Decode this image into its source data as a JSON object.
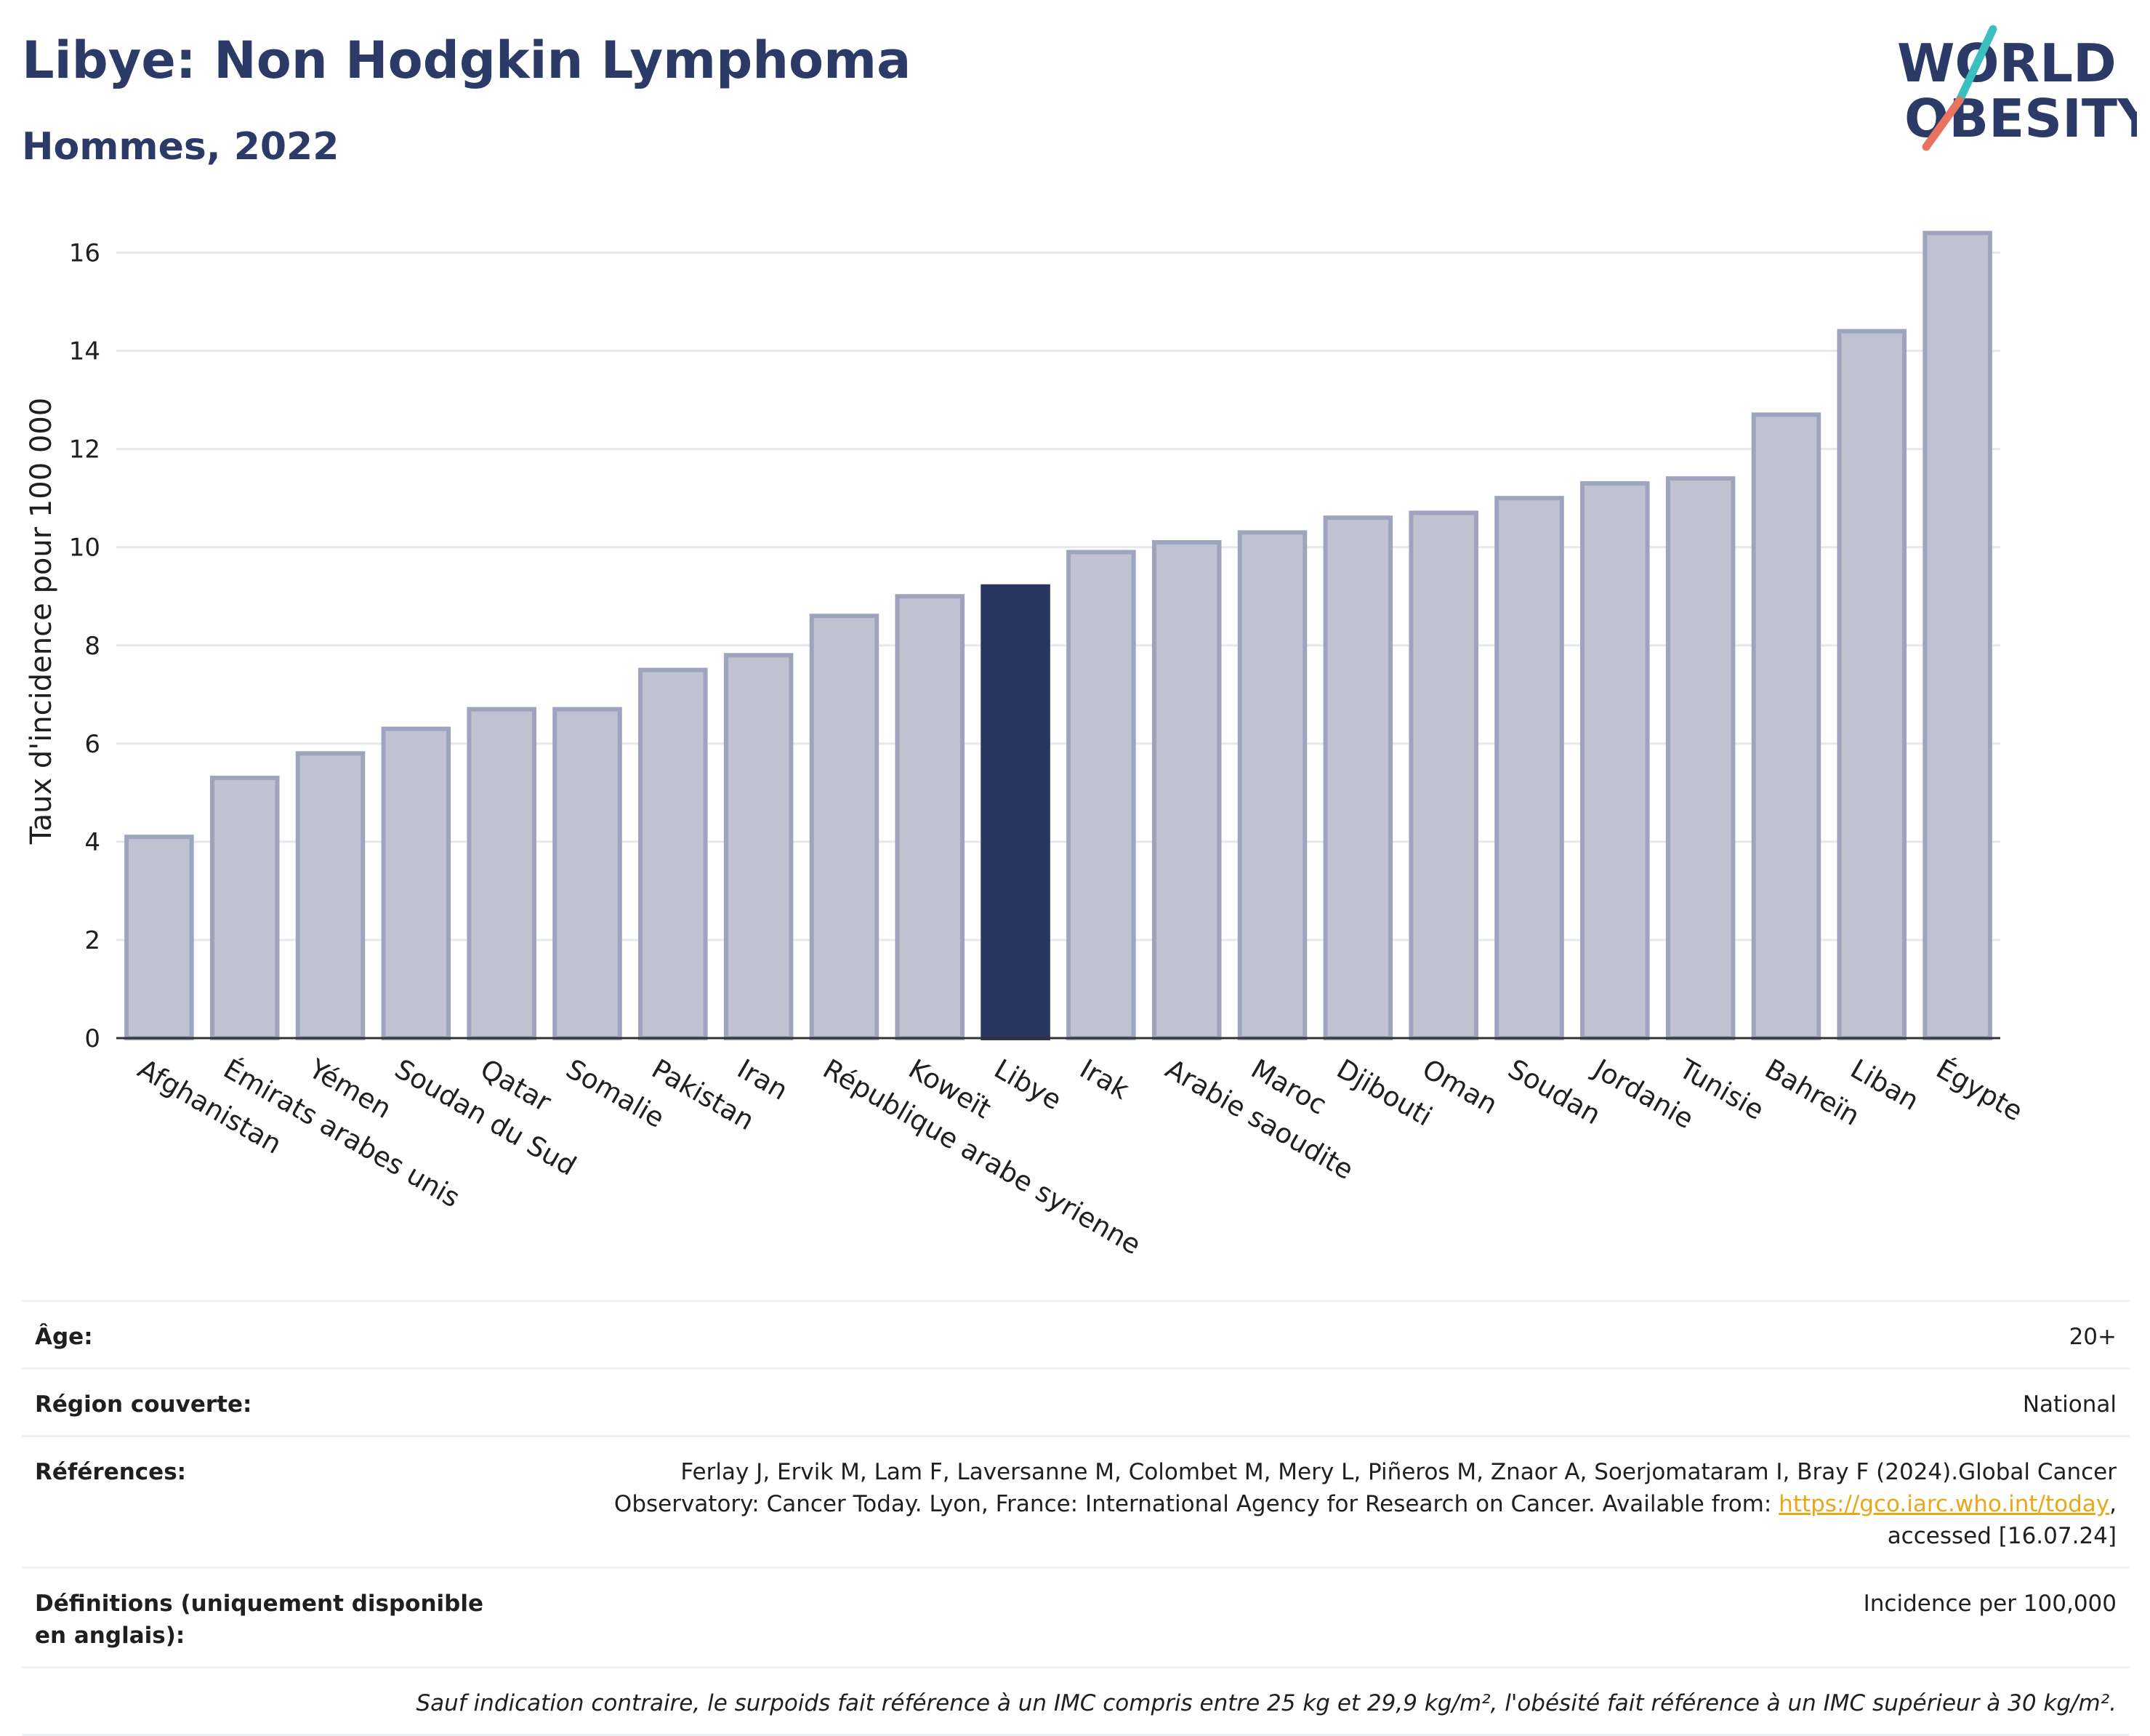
{
  "title": "Libye: Non Hodgkin Lymphoma",
  "subtitle": "Hommes, 2022",
  "logo": {
    "line1": "WORLD",
    "line2": "OBESITY"
  },
  "colors": {
    "highlight": "#2b3561",
    "bar": "#bfc3d1",
    "bar_border": "#9ea4bd",
    "title": "#2b3a67",
    "link": "#e9a71a"
  },
  "chart_data": {
    "type": "bar",
    "ylabel": "Taux d'incidence pour 100 000",
    "xlabel": "",
    "ylim": [
      0,
      17
    ],
    "yticks": [
      0,
      2,
      4,
      6,
      8,
      10,
      12,
      14,
      16
    ],
    "grid": true,
    "highlight": "Libye",
    "categories": [
      "Afghanistan",
      "Émirats arabes unis",
      "Yémen",
      "Soudan du Sud",
      "Qatar",
      "Somalie",
      "Pakistan",
      "Iran",
      "République arabe syrienne",
      "Koweït",
      "Libye",
      "Irak",
      "Arabie saoudite",
      "Maroc",
      "Djibouti",
      "Oman",
      "Soudan",
      "Jordanie",
      "Tunisie",
      "Bahreïn",
      "Liban",
      "Égypte"
    ],
    "values": [
      4.1,
      5.3,
      5.8,
      6.3,
      6.7,
      6.7,
      7.5,
      7.8,
      8.6,
      9.0,
      9.2,
      9.9,
      10.1,
      10.3,
      10.6,
      10.7,
      11.0,
      11.3,
      11.4,
      12.7,
      14.4,
      16.4
    ]
  },
  "info": {
    "age_label": "Âge:",
    "age_value": "20+",
    "region_label": "Région couverte:",
    "region_value": "National",
    "references_label": "Références:",
    "references_line1": "Ferlay J, Ervik M, Lam F, Laversanne M, Colombet M, Mery L, Piñeros M, Znaor A, Soerjomataram I, Bray F (2024).Global Cancer",
    "references_line2": "Observatory: Cancer Today. Lyon, France: International Agency for Research on Cancer. Available from:",
    "references_link": "https://gco.iarc.who.int/today",
    "references_line3": "accessed [16.07.24]",
    "definitions_label": "Définitions (uniquement disponible en anglais):",
    "definitions_value": "Incidence per 100,000",
    "note": "Sauf indication contraire, le surpoids fait référence à un IMC compris entre 25 kg et 29,9 kg/m², l'obésité fait référence à un IMC supérieur à 30 kg/m²."
  }
}
